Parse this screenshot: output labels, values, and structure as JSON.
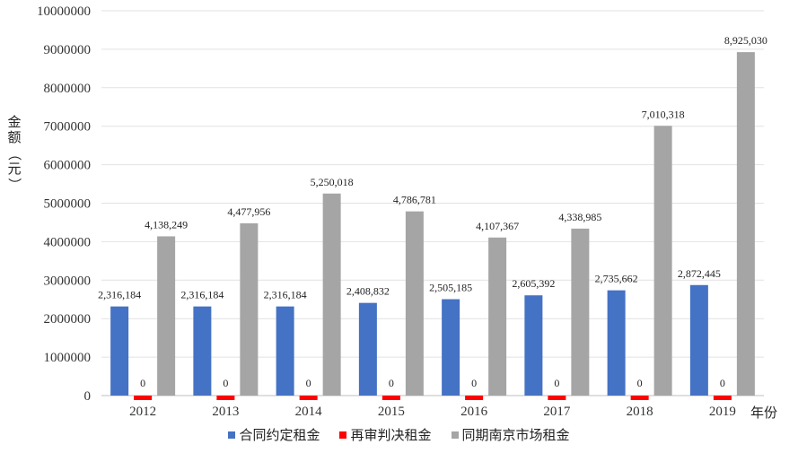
{
  "chart_data": {
    "type": "bar",
    "xlabel": "年份",
    "ylabel": "金额（元）",
    "ylim": [
      0,
      10000000
    ],
    "yticks": [
      "0",
      "1000000",
      "2000000",
      "3000000",
      "4000000",
      "5000000",
      "6000000",
      "7000000",
      "8000000",
      "9000000",
      "10000000"
    ],
    "ytick_values": [
      0,
      1000000,
      2000000,
      3000000,
      4000000,
      5000000,
      6000000,
      7000000,
      8000000,
      9000000,
      10000000
    ],
    "grid": true,
    "legend_position": "bottom",
    "categories": [
      "2012",
      "2013",
      "2014",
      "2015",
      "2016",
      "2017",
      "2018",
      "2019"
    ],
    "series": [
      {
        "name": "合同约定租金",
        "color": "#4472C4",
        "values": [
          2316184,
          2316184,
          2316184,
          2408832,
          2505185,
          2605392,
          2735662,
          2872445
        ],
        "labels": [
          "2,316,184",
          "2,316,184",
          "2,316,184",
          "2,408,832",
          "2,505,185",
          "2,605,392",
          "2,735,662",
          "2,872,445"
        ]
      },
      {
        "name": "再审判决租金",
        "color": "#FF0000",
        "values": [
          0,
          0,
          0,
          0,
          0,
          0,
          0,
          0
        ],
        "labels": [
          "0",
          "0",
          "0",
          "0",
          "0",
          "0",
          "0",
          "0"
        ]
      },
      {
        "name": "同期南京市场租金",
        "color": "#A5A5A5",
        "values": [
          4138249,
          4477956,
          5250018,
          4786781,
          4107367,
          4338985,
          7010318,
          8925030
        ],
        "labels": [
          "4,138,249",
          "4,477,956",
          "5,250,018",
          "4,786,781",
          "4,107,367",
          "4,338,985",
          "7,010,318",
          "8,925,030"
        ]
      }
    ]
  }
}
